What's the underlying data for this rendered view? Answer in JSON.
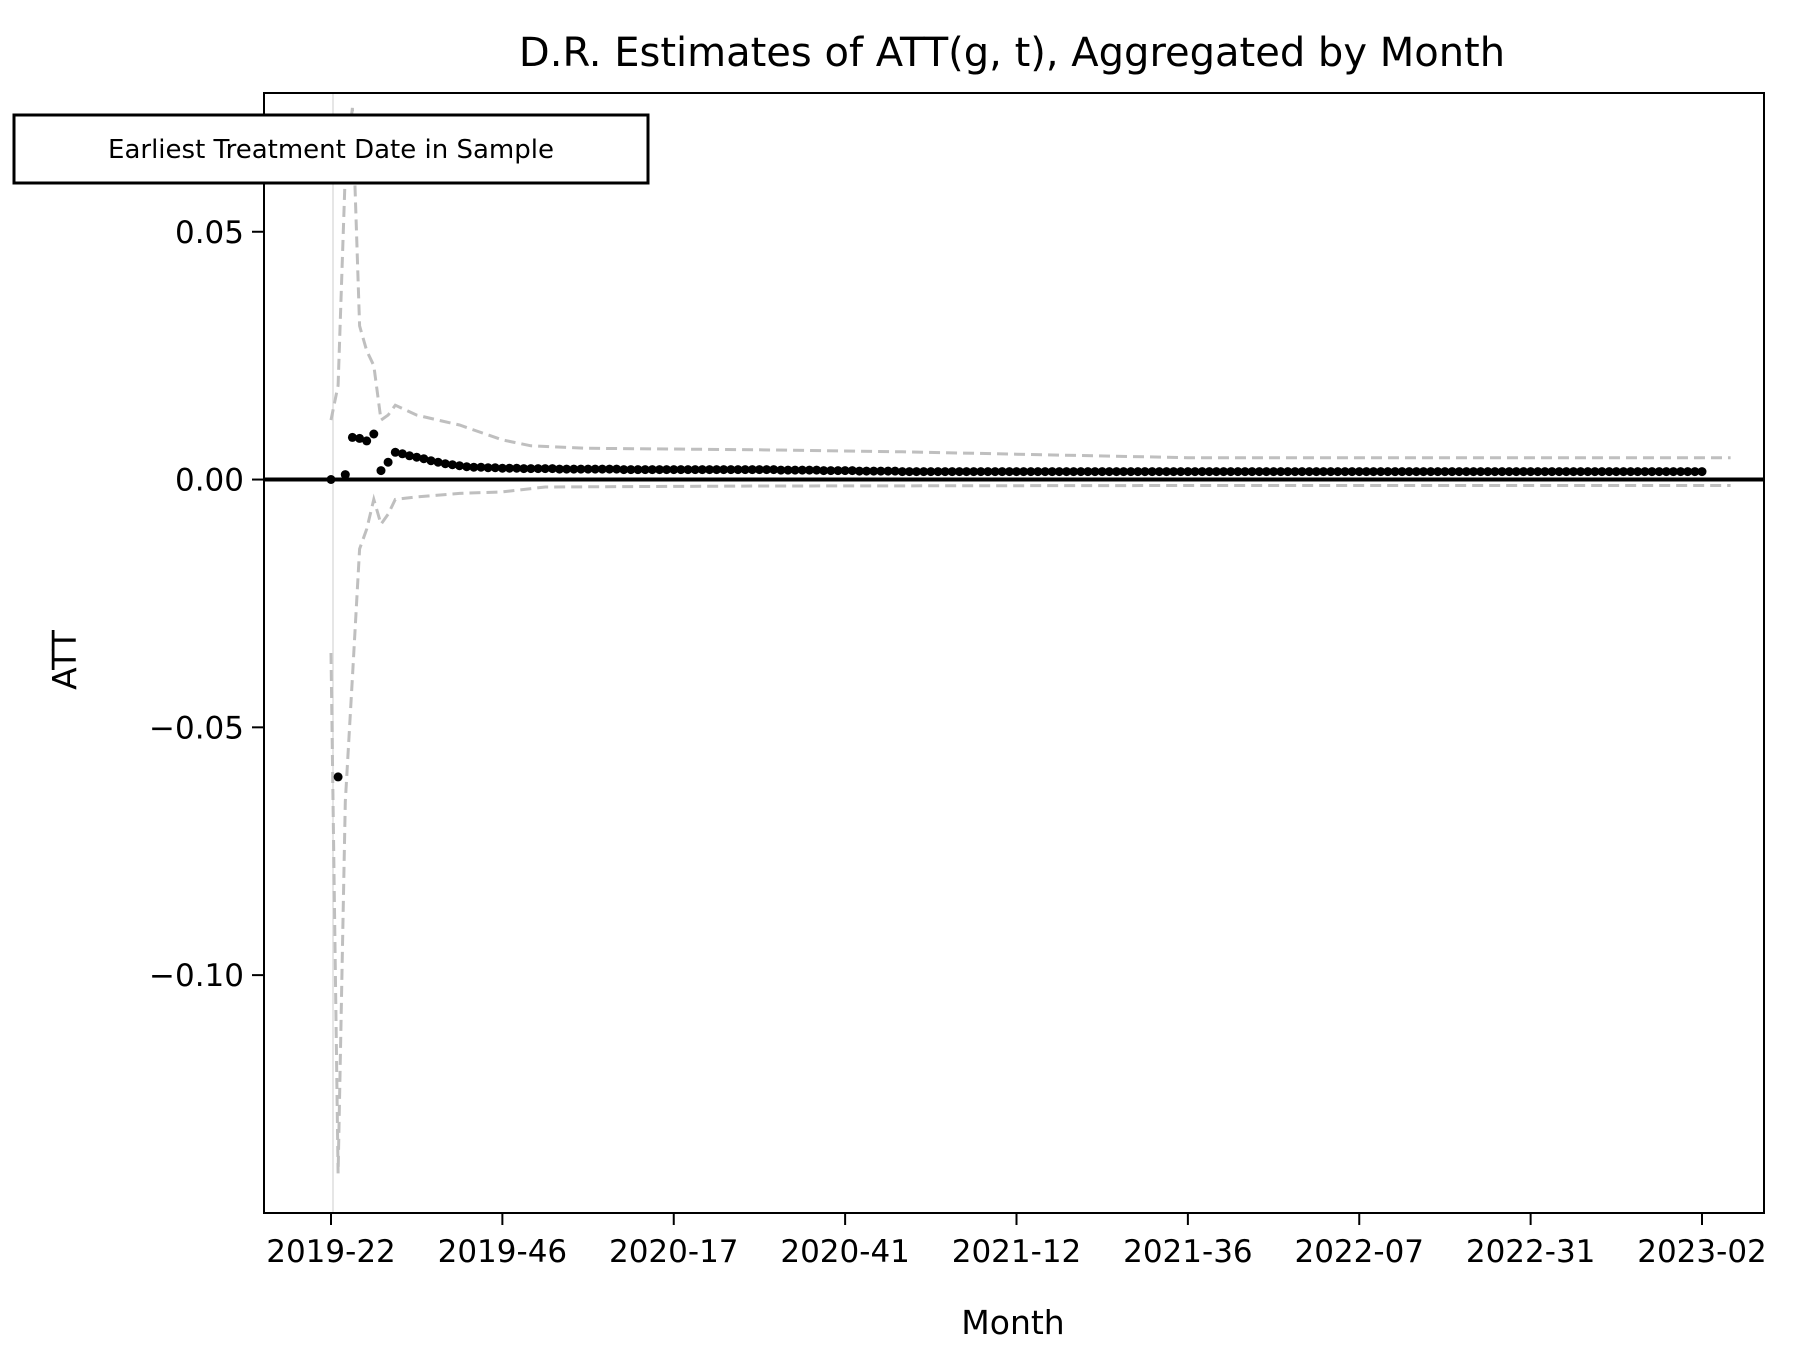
{
  "chart_data": {
    "type": "scatter",
    "title": "D.R. Estimates of ATT(g, t), Aggregated by Month",
    "xlabel": "Month",
    "ylabel": "ATT",
    "annotation": "Earliest Treatment Date in Sample",
    "x_tick_labels": [
      "2019-22",
      "2019-46",
      "2020-17",
      "2020-41",
      "2021-12",
      "2021-36",
      "2022-07",
      "2022-31",
      "2023-02"
    ],
    "y_ticks": [
      0.05,
      0.0,
      -0.05,
      -0.1
    ],
    "y_tick_labels": [
      "0.05",
      "0.00",
      "−0.05",
      "−0.10"
    ],
    "ylim": [
      -0.148,
      0.078
    ],
    "grid": false,
    "colors": {
      "points": "#000000",
      "ci": "#bfbfbf",
      "zero_line": "#000000",
      "treatment_line": "#e6e6e6"
    },
    "series": [
      {
        "values": [
          0.0,
          -0.06,
          0.001,
          0.0085,
          0.0083,
          0.0078,
          0.0092,
          0.0018,
          0.0035,
          0.0055,
          0.0052,
          0.0048,
          0.0045,
          0.0042,
          0.0038,
          0.0035,
          0.0032,
          0.003,
          0.0028,
          0.0026,
          0.0025,
          0.0025,
          0.0024,
          0.0024,
          0.0023,
          0.0023,
          0.0023,
          0.0022,
          0.0022,
          0.0022,
          0.0022,
          0.0022,
          0.0021,
          0.0021,
          0.0021,
          0.0021,
          0.0021,
          0.0021,
          0.0021,
          0.0021,
          0.0021,
          0.002,
          0.002,
          0.002,
          0.002,
          0.002,
          0.002,
          0.002,
          0.002,
          0.002,
          0.002,
          0.002,
          0.002,
          0.002,
          0.002,
          0.002,
          0.002,
          0.002,
          0.002,
          0.002,
          0.002,
          0.002,
          0.002,
          0.0019,
          0.0019,
          0.0019,
          0.0019,
          0.0019,
          0.0019,
          0.0018,
          0.0018,
          0.0018,
          0.0018,
          0.0018,
          0.0017,
          0.0017,
          0.0017,
          0.0017,
          0.0017,
          0.0017,
          0.0016,
          0.0016,
          0.0016,
          0.0016,
          0.0016,
          0.0016,
          0.0016,
          0.0016,
          0.0016,
          0.0016,
          0.0016,
          0.0016,
          0.0016,
          0.0016,
          0.0016,
          0.0016,
          0.0016,
          0.0016,
          0.0016,
          0.0016,
          0.0016,
          0.0016,
          0.0016,
          0.0016,
          0.0016,
          0.0016,
          0.0016,
          0.0016,
          0.0016,
          0.0016,
          0.0016,
          0.0016,
          0.0016,
          0.0016,
          0.0016,
          0.0016,
          0.0016,
          0.0016,
          0.0016,
          0.0016,
          0.0016,
          0.0016,
          0.0016,
          0.0016,
          0.0016,
          0.0016,
          0.0016,
          0.0016,
          0.0016,
          0.0016,
          0.0016,
          0.0016,
          0.0016,
          0.0016,
          0.0016,
          0.0016,
          0.0016,
          0.0016,
          0.0016,
          0.0016,
          0.0016,
          0.0016,
          0.0016,
          0.0016,
          0.0016,
          0.0016,
          0.0016,
          0.0016,
          0.0016,
          0.0016,
          0.0016,
          0.0016,
          0.0016,
          0.0016,
          0.0016,
          0.0016,
          0.0016,
          0.0016,
          0.0016,
          0.0016,
          0.0016,
          0.0016,
          0.0016,
          0.0016,
          0.0016,
          0.0016,
          0.0016,
          0.0016,
          0.0016,
          0.0016,
          0.0016,
          0.0016,
          0.0016,
          0.0016,
          0.0016,
          0.0016,
          0.0016,
          0.0016,
          0.0016,
          0.0016,
          0.0016,
          0.0016,
          0.0016,
          0.0016,
          0.0016,
          0.0016,
          0.0016,
          0.0016,
          0.0016,
          0.0016,
          0.0016,
          0.0016,
          0.0016
        ]
      }
    ],
    "ci_upper": [
      [
        0,
        0.012
      ],
      [
        1,
        0.019
      ],
      [
        2,
        0.062
      ],
      [
        3,
        0.075
      ],
      [
        4,
        0.031
      ],
      [
        5,
        0.026
      ],
      [
        6,
        0.023
      ],
      [
        7,
        0.012
      ],
      [
        8,
        0.013
      ],
      [
        9,
        0.015
      ],
      [
        12,
        0.013
      ],
      [
        15,
        0.012
      ],
      [
        18,
        0.011
      ],
      [
        20,
        0.01
      ],
      [
        24,
        0.008
      ],
      [
        28,
        0.0068
      ],
      [
        36,
        0.0063
      ],
      [
        60,
        0.006
      ],
      [
        80,
        0.0056
      ],
      [
        100,
        0.005
      ],
      [
        120,
        0.0044
      ],
      [
        160,
        0.0044
      ],
      [
        196,
        0.0044
      ]
    ],
    "ci_lower": [
      [
        0,
        -0.035
      ],
      [
        1,
        -0.14
      ],
      [
        2,
        -0.065
      ],
      [
        3,
        -0.04
      ],
      [
        4,
        -0.014
      ],
      [
        5,
        -0.01
      ],
      [
        6,
        -0.004
      ],
      [
        7,
        -0.009
      ],
      [
        8,
        -0.007
      ],
      [
        9,
        -0.004
      ],
      [
        12,
        -0.0035
      ],
      [
        18,
        -0.0028
      ],
      [
        24,
        -0.0025
      ],
      [
        30,
        -0.0015
      ],
      [
        60,
        -0.0013
      ],
      [
        120,
        -0.0012
      ],
      [
        196,
        -0.0012
      ]
    ]
  }
}
